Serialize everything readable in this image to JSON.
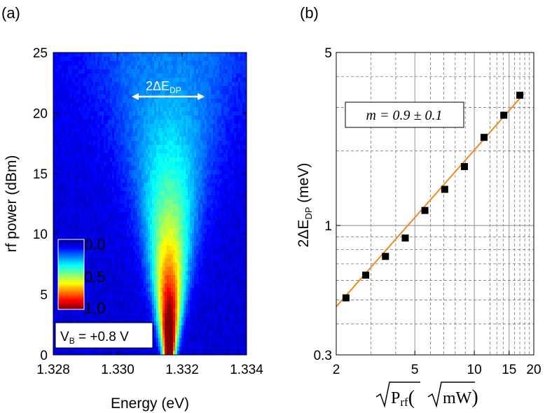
{
  "chart_data": [
    {
      "type": "heatmap",
      "panel_label": "(a)",
      "xlabel": "Energy (eV)",
      "ylabel": "rf power (dBm)",
      "xlim": [
        1.328,
        1.334
      ],
      "ylim": [
        0,
        25
      ],
      "x_ticks": [
        "1.328",
        "1.330",
        "1.332",
        "1.334"
      ],
      "y_ticks": [
        "0",
        "5",
        "10",
        "15",
        "20",
        "25"
      ],
      "colorbar": {
        "ticks": [
          "0.0",
          "0.5",
          "1.0"
        ],
        "range": [
          0.0,
          1.0
        ],
        "colormap": "jet"
      },
      "annotations": {
        "splitting": "2ΔE",
        "splitting_sub": "DP",
        "bias_prefix": "V",
        "bias_sub": "B",
        "bias_value": " = +0.8 V"
      },
      "model": {
        "center_energy": 1.3316,
        "line_width": 0.00018,
        "splitting_at_max_power": 0.002
      }
    },
    {
      "type": "scatter",
      "panel_label": "(b)",
      "xlabel": "√P_rf (√mW)",
      "xlabel_parts": {
        "p": "P",
        "sub": "rf",
        "open": "(",
        "unit": "mW",
        "close": ")"
      },
      "ylabel": "2ΔE_DP (meV)",
      "ylabel_parts": {
        "main": "2ΔE",
        "sub": "DP",
        "unit": " (meV)"
      },
      "xscale": "log",
      "yscale": "log",
      "xlim": [
        2,
        20
      ],
      "ylim": [
        0.3,
        5
      ],
      "x_ticks": [
        "2",
        "5",
        "10",
        "15",
        "20"
      ],
      "y_ticks": [
        "0.3",
        "1",
        "5"
      ],
      "fit_label": "m = 0.9 ± 0.1",
      "fit": {
        "slope": 0.9,
        "uncertainty": 0.1,
        "line_x": [
          2.0,
          17.8
        ],
        "line_y": [
          0.47,
          3.4
        ]
      },
      "points": {
        "x": [
          2.24,
          2.82,
          3.55,
          4.47,
          5.62,
          7.08,
          8.91,
          11.2,
          14.1,
          17.0
        ],
        "y": [
          0.51,
          0.63,
          0.75,
          0.89,
          1.15,
          1.4,
          1.73,
          2.27,
          2.79,
          3.36
        ]
      }
    }
  ]
}
